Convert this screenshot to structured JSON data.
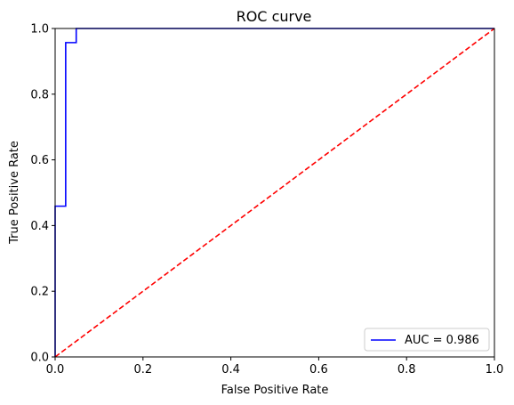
{
  "chart_data": {
    "type": "line",
    "title": "ROC curve",
    "xlabel": "False Positive Rate",
    "ylabel": "True Positive Rate",
    "xlim": [
      0,
      1
    ],
    "ylim": [
      0,
      1
    ],
    "x_ticks": [
      "0.0",
      "0.2",
      "0.4",
      "0.6",
      "0.8",
      "1.0"
    ],
    "y_ticks": [
      "0.0",
      "0.2",
      "0.4",
      "0.6",
      "0.8",
      "1.0"
    ],
    "grid": false,
    "legend_position": "lower-right",
    "series": [
      {
        "name": "AUC = 0.986",
        "color": "#0000ff",
        "style": "solid",
        "x": [
          0.0,
          0.0,
          0.024,
          0.024,
          0.048,
          0.048,
          1.0
        ],
        "y": [
          0.0,
          0.459,
          0.459,
          0.957,
          0.957,
          1.0,
          1.0
        ]
      },
      {
        "color": "#ff0000",
        "style": "dashed",
        "x": [
          0,
          1
        ],
        "y": [
          0,
          1
        ]
      }
    ]
  }
}
